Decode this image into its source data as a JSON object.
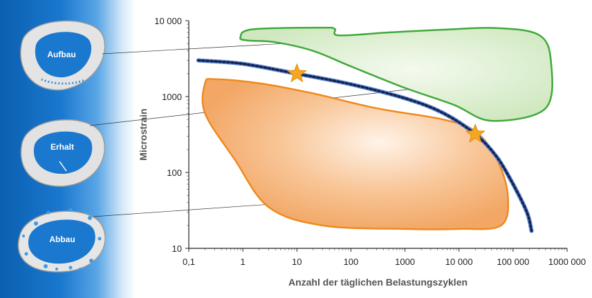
{
  "colors": {
    "panel_blue": "#1a78cf",
    "bone_fill": "#dcdcdc",
    "green_fill": "#d7edc9",
    "green_stroke": "#3fa83a",
    "orange_fill": "#f5b27a",
    "orange_stroke": "#ee8a1c",
    "curve_light": "#5b8fdc",
    "curve_dark": "#18204a",
    "star": "#f5a623"
  },
  "left_panel": {
    "labels": [
      "Aufbau",
      "Erhalt",
      "Abbau"
    ]
  },
  "chart_data": {
    "type": "area",
    "x_scale": "log",
    "y_scale": "log",
    "xlabel": "Anzahl der täglichen Belastungszyklen",
    "ylabel": "Microstrain",
    "xlim": [
      0.1,
      1000000
    ],
    "ylim": [
      10,
      10000
    ],
    "x_ticks": [
      {
        "value": 0.1,
        "label": "0,1"
      },
      {
        "value": 1,
        "label": "1"
      },
      {
        "value": 10,
        "label": "10"
      },
      {
        "value": 100,
        "label": "100"
      },
      {
        "value": 1000,
        "label": "1000"
      },
      {
        "value": 10000,
        "label": "10 000"
      },
      {
        "value": 100000,
        "label": "100 000"
      },
      {
        "value": 1000000,
        "label": "1000 000"
      }
    ],
    "y_ticks": [
      {
        "value": 10,
        "label": "10"
      },
      {
        "value": 100,
        "label": "100"
      },
      {
        "value": 1000,
        "label": "1000"
      },
      {
        "value": 10000,
        "label": "10 000"
      }
    ],
    "regions": [
      {
        "name": "Aufbau",
        "color": "#d7edc9",
        "outline": [
          [
            0.9,
            6000
          ],
          [
            1.5,
            7700
          ],
          [
            30,
            8100
          ],
          [
            50,
            7800
          ],
          [
            60,
            6400
          ],
          [
            500,
            7000
          ],
          [
            5000,
            7600
          ],
          [
            50000,
            8000
          ],
          [
            300000,
            6500
          ],
          [
            500000,
            3000
          ],
          [
            400000,
            700
          ],
          [
            40000,
            480
          ],
          [
            8000,
            780
          ],
          [
            1000,
            1300
          ],
          [
            100,
            2500
          ],
          [
            20,
            4000
          ],
          [
            4,
            5200
          ],
          [
            1.2,
            5500
          ]
        ]
      },
      {
        "name": "Erhalt",
        "color": "#3a5ec0",
        "curve": [
          [
            0.15,
            3000
          ],
          [
            1,
            2700
          ],
          [
            10,
            2000
          ],
          [
            100,
            1450
          ],
          [
            1000,
            950
          ],
          [
            5000,
            610
          ],
          [
            20000,
            320
          ],
          [
            50000,
            160
          ],
          [
            100000,
            70
          ],
          [
            180000,
            30
          ],
          [
            220000,
            17
          ]
        ]
      },
      {
        "name": "Abbau",
        "color": "#f5b27a",
        "outline": [
          [
            0.2,
            1500
          ],
          [
            0.3,
            1700
          ],
          [
            2,
            1500
          ],
          [
            20,
            1100
          ],
          [
            300,
            700
          ],
          [
            5000,
            500
          ],
          [
            20000,
            350
          ],
          [
            50000,
            150
          ],
          [
            80000,
            50
          ],
          [
            60000,
            20
          ],
          [
            10000,
            18
          ],
          [
            1000,
            18
          ],
          [
            30,
            20
          ],
          [
            3,
            35
          ],
          [
            0.7,
            150
          ],
          [
            0.2,
            600
          ]
        ]
      }
    ],
    "stars": [
      [
        10,
        2000
      ],
      [
        20000,
        320
      ]
    ],
    "leader_targets": [
      [
        40,
        5400
      ],
      [
        2000,
        1300
      ],
      [
        3,
        38
      ]
    ]
  }
}
